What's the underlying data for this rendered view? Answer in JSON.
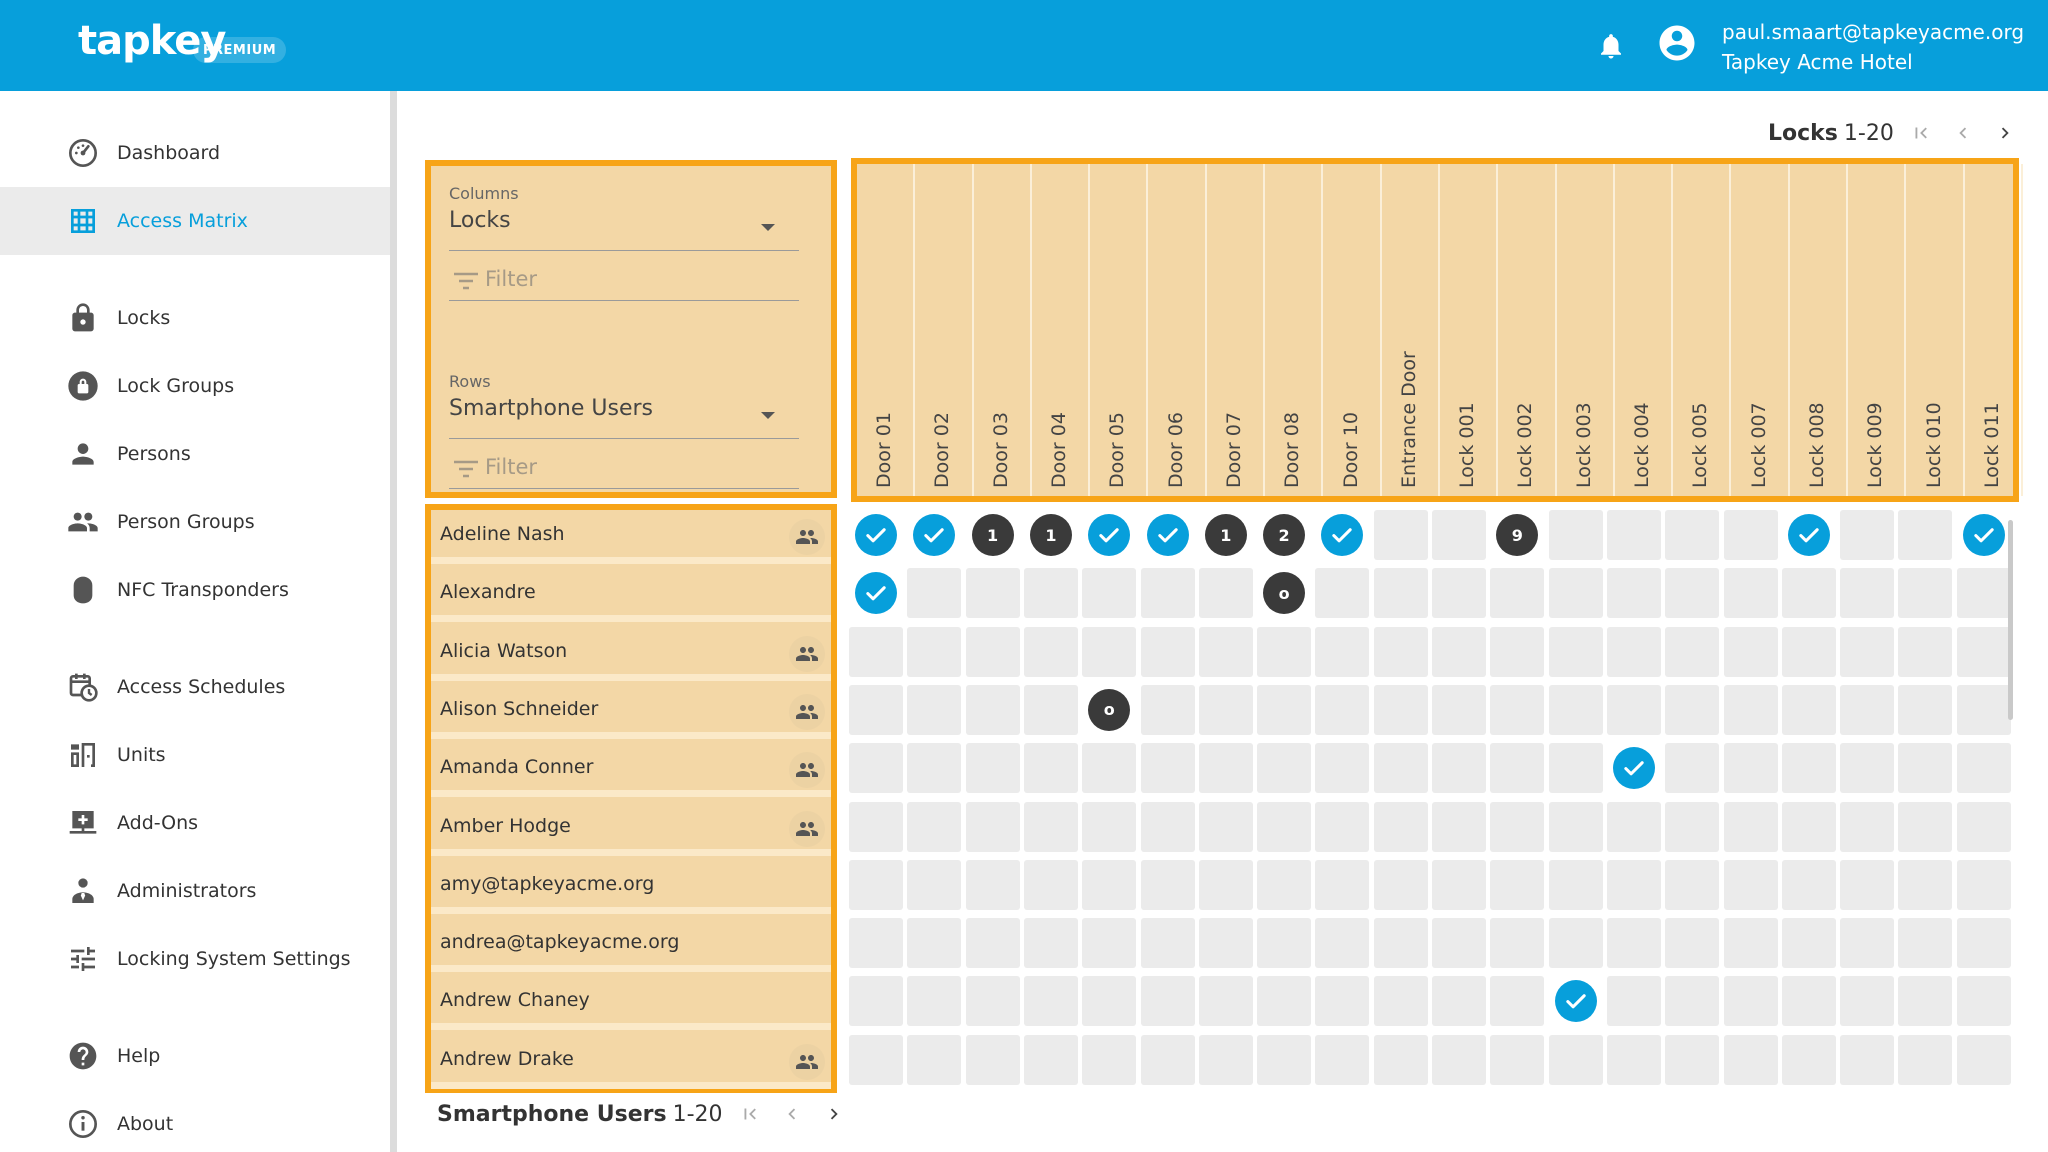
{
  "header": {
    "logo": "tapkey",
    "badge": "PREMIUM",
    "user_email": "paul.smaart@tapkeyacme.org",
    "organization": "Tapkey Acme Hotel",
    "bar_color": "#079fdb"
  },
  "sidebar": {
    "items": [
      {
        "label": "Dashboard",
        "icon": "dashboard-icon"
      },
      {
        "label": "Access Matrix",
        "icon": "grid-icon",
        "active": true
      },
      {
        "label": "Locks",
        "icon": "lock-icon"
      },
      {
        "label": "Lock Groups",
        "icon": "lock-group-icon"
      },
      {
        "label": "Persons",
        "icon": "person-icon"
      },
      {
        "label": "Person Groups",
        "icon": "people-icon"
      },
      {
        "label": "NFC Transponders",
        "icon": "transponder-icon"
      },
      {
        "label": "Access Schedules",
        "icon": "calendar-clock-icon"
      },
      {
        "label": "Units",
        "icon": "units-icon"
      },
      {
        "label": "Add-Ons",
        "icon": "add-ons-icon"
      },
      {
        "label": "Administrators",
        "icon": "administrator-icon"
      },
      {
        "label": "Locking System Settings",
        "icon": "sliders-icon"
      },
      {
        "label": "Help",
        "icon": "help-icon"
      },
      {
        "label": "About",
        "icon": "info-icon"
      }
    ]
  },
  "pager_top": {
    "title": "Locks",
    "range": "1-20"
  },
  "pager_bottom": {
    "title": "Smartphone Users",
    "range": "1-20"
  },
  "filters": {
    "columns_label": "Columns",
    "columns_value": "Locks",
    "columns_filter_placeholder": "Filter",
    "rows_label": "Rows",
    "rows_value": "Smartphone Users",
    "rows_filter_placeholder": "Filter"
  },
  "columns": [
    "Door 01",
    "Door 02",
    "Door 03",
    "Door 04",
    "Door 05",
    "Door 06",
    "Door 07",
    "Door 08",
    "Door 10",
    "Entrance Door",
    "Lock 001",
    "Lock 002",
    "Lock 003",
    "Lock 004",
    "Lock 005",
    "Lock 007",
    "Lock 008",
    "Lock 009",
    "Lock 010",
    "Lock 011"
  ],
  "rows": [
    {
      "name": "Adeline Nash",
      "group": true
    },
    {
      "name": "Alexandre",
      "group": false
    },
    {
      "name": "Alicia Watson",
      "group": true
    },
    {
      "name": "Alison Schneider",
      "group": true
    },
    {
      "name": "Amanda Conner",
      "group": true
    },
    {
      "name": "Amber Hodge",
      "group": true
    },
    {
      "name": "amy@tapkeyacme.org",
      "group": false
    },
    {
      "name": "andrea@tapkeyacme.org",
      "group": false
    },
    {
      "name": "Andrew Chaney",
      "group": false
    },
    {
      "name": "Andrew Drake",
      "group": true
    }
  ],
  "matrix": [
    [
      "check",
      "check",
      "1",
      "1",
      "check",
      "check",
      "1",
      "2",
      "check",
      "",
      "",
      "9",
      "",
      "",
      "",
      "",
      "check",
      "",
      "",
      "check"
    ],
    [
      "check",
      "",
      "",
      "",
      "",
      "",
      "",
      "o",
      "",
      "",
      "",
      "",
      "",
      "",
      "",
      "",
      "",
      "",
      "",
      ""
    ],
    [
      "",
      "",
      "",
      "",
      "",
      "",
      "",
      "",
      "",
      "",
      "",
      "",
      "",
      "",
      "",
      "",
      "",
      "",
      "",
      ""
    ],
    [
      "",
      "",
      "",
      "",
      "o",
      "",
      "",
      "",
      "",
      "",
      "",
      "",
      "",
      "",
      "",
      "",
      "",
      "",
      "",
      ""
    ],
    [
      "",
      "",
      "",
      "",
      "",
      "",
      "",
      "",
      "",
      "",
      "",
      "",
      "",
      "check",
      "",
      "",
      "",
      "",
      "",
      ""
    ],
    [
      "",
      "",
      "",
      "",
      "",
      "",
      "",
      "",
      "",
      "",
      "",
      "",
      "",
      "",
      "",
      "",
      "",
      "",
      "",
      ""
    ],
    [
      "",
      "",
      "",
      "",
      "",
      "",
      "",
      "",
      "",
      "",
      "",
      "",
      "",
      "",
      "",
      "",
      "",
      "",
      "",
      ""
    ],
    [
      "",
      "",
      "",
      "",
      "",
      "",
      "",
      "",
      "",
      "",
      "",
      "",
      "",
      "",
      "",
      "",
      "",
      "",
      "",
      ""
    ],
    [
      "",
      "",
      "",
      "",
      "",
      "",
      "",
      "",
      "",
      "",
      "",
      "",
      "check",
      "",
      "",
      "",
      "",
      "",
      "",
      ""
    ],
    [
      "",
      "",
      "",
      "",
      "",
      "",
      "",
      "",
      "",
      "",
      "",
      "",
      "",
      "",
      "",
      "",
      "",
      "",
      "",
      ""
    ]
  ]
}
